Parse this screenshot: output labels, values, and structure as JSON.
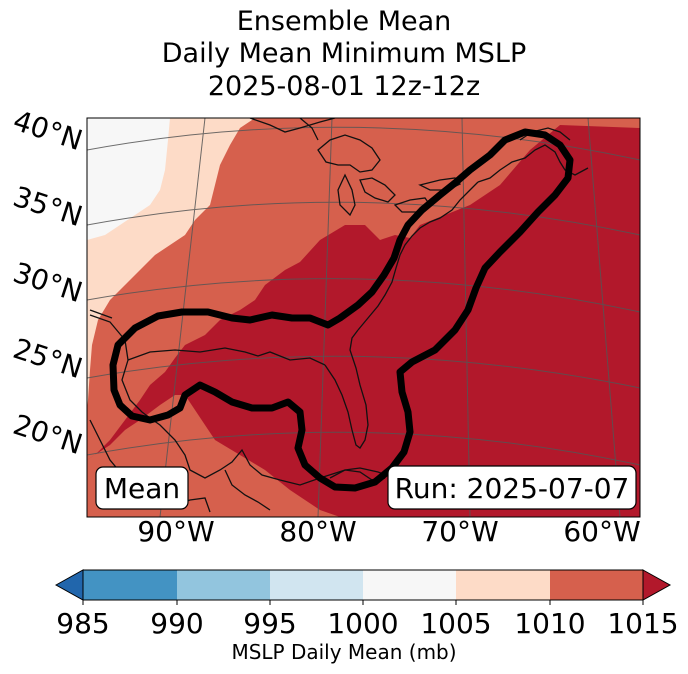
{
  "title": {
    "line1": "Ensemble Mean",
    "line2": "Daily Mean Minimum MSLP",
    "line3": "2025-08-01 12z-12z"
  },
  "map": {
    "lat_labels": [
      "40°N",
      "35°N",
      "30°N",
      "25°N",
      "20°N"
    ],
    "lon_labels": [
      "90°W",
      "80°W",
      "70°W",
      "60°W"
    ],
    "mean_box": "Mean",
    "run_box": "Run: 2025-07-07",
    "fill_colors": {
      "lt1010": "#fddbc7",
      "lt1015": "#d6604d",
      "gt1015": "#b2182b",
      "lt1005": "#f7f7f7"
    },
    "contour_color": "#000000"
  },
  "colorbar": {
    "ticks": [
      "985",
      "990",
      "995",
      "1000",
      "1005",
      "1010",
      "1015"
    ],
    "colors": [
      "#2166ac",
      "#4393c3",
      "#92c5de",
      "#d1e5f0",
      "#f7f7f7",
      "#fddbc7",
      "#d6604d",
      "#b2182b"
    ],
    "label": "MSLP Daily Mean (mb)"
  }
}
